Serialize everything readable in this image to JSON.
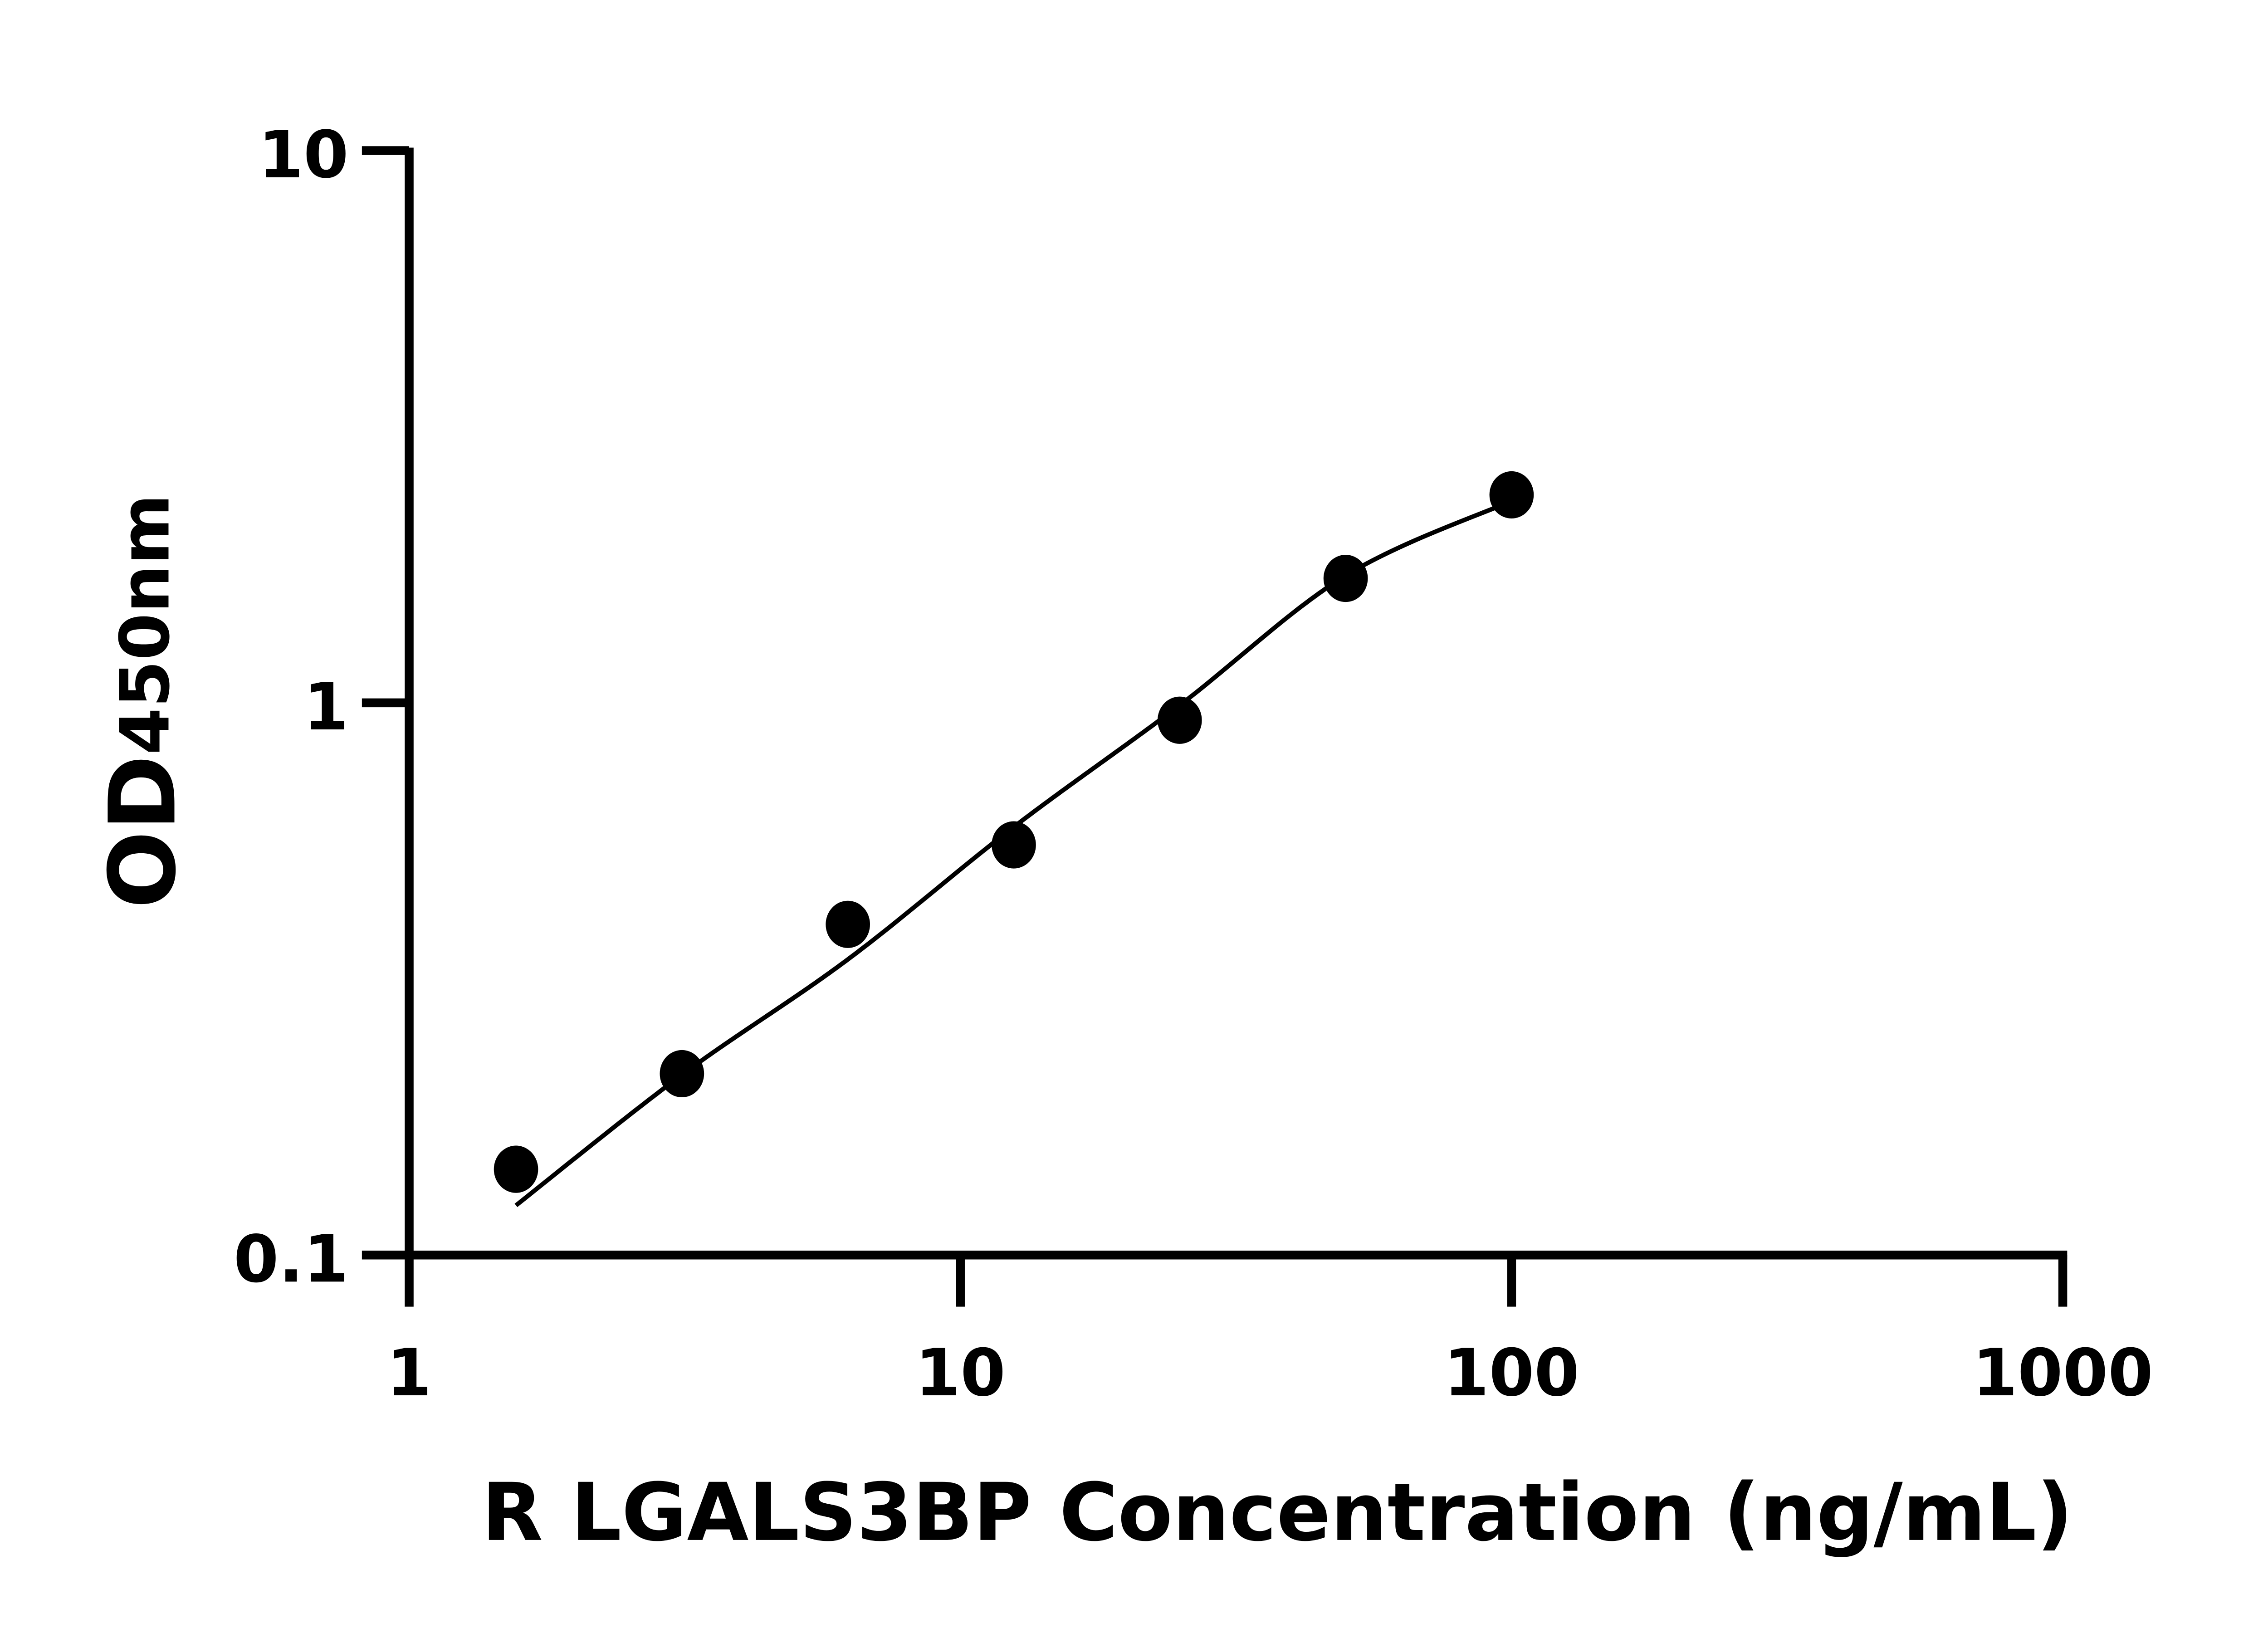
{
  "chart_data": {
    "type": "scatter",
    "title": "",
    "xlabel": "R LGALS3BP Concentration (ng/mL)",
    "ylabel": {
      "main": "OD",
      "sub": "450nm"
    },
    "xscale": "log",
    "yscale": "log",
    "xlim": [
      1,
      1000
    ],
    "ylim": [
      0.1,
      10
    ],
    "xticks": [
      "1",
      "10",
      "100",
      "1000"
    ],
    "yticks": [
      "0.1",
      "1",
      "10"
    ],
    "grid": false,
    "marker_color": "#000000",
    "points": {
      "x": [
        1.5625,
        3.125,
        6.25,
        12.5,
        25,
        50,
        100
      ],
      "y": [
        0.143,
        0.213,
        0.397,
        0.553,
        0.93,
        1.68,
        2.38
      ]
    },
    "fit_curve": {
      "x": [
        1.5625,
        3.125,
        6.25,
        12.5,
        25,
        50,
        100
      ],
      "y": [
        0.123,
        0.212,
        0.343,
        0.596,
        0.99,
        1.7,
        2.32
      ]
    }
  }
}
